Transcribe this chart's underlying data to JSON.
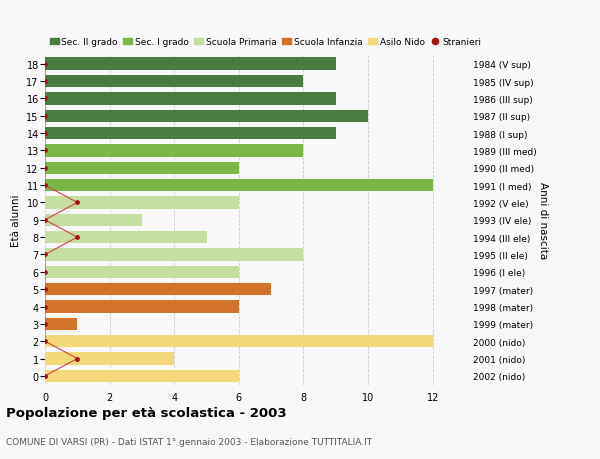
{
  "ages": [
    18,
    17,
    16,
    15,
    14,
    13,
    12,
    11,
    10,
    9,
    8,
    7,
    6,
    5,
    4,
    3,
    2,
    1,
    0
  ],
  "right_labels": [
    "1984 (V sup)",
    "1985 (IV sup)",
    "1986 (III sup)",
    "1987 (II sup)",
    "1988 (I sup)",
    "1989 (III med)",
    "1990 (II med)",
    "1991 (I med)",
    "1992 (V ele)",
    "1993 (IV ele)",
    "1994 (III ele)",
    "1995 (II ele)",
    "1996 (I ele)",
    "1997 (mater)",
    "1998 (mater)",
    "1999 (mater)",
    "2000 (nido)",
    "2001 (nido)",
    "2002 (nido)"
  ],
  "bar_values": [
    9,
    8,
    9,
    10,
    9,
    8,
    6,
    12,
    6,
    3,
    5,
    8,
    6,
    7,
    6,
    1,
    12,
    4,
    6
  ],
  "bar_colors": [
    "#4a7c3f",
    "#4a7c3f",
    "#4a7c3f",
    "#4a7c3f",
    "#4a7c3f",
    "#7ab648",
    "#7ab648",
    "#7ab648",
    "#c5dfa0",
    "#c5dfa0",
    "#c5dfa0",
    "#c5dfa0",
    "#c5dfa0",
    "#d4722a",
    "#d4722a",
    "#d4722a",
    "#f5d87a",
    "#f5d87a",
    "#f5d87a"
  ],
  "stranieri_values": [
    0,
    0,
    0,
    0,
    0,
    0,
    0,
    0,
    1,
    0,
    1,
    0,
    0,
    0,
    0,
    0,
    0,
    1,
    0
  ],
  "legend_labels": [
    "Sec. II grado",
    "Sec. I grado",
    "Scuola Primaria",
    "Scuola Infanzia",
    "Asilo Nido",
    "Stranieri"
  ],
  "legend_colors": [
    "#4a7c3f",
    "#7ab648",
    "#c5dfa0",
    "#d4722a",
    "#f5d87a",
    "#aa1111"
  ],
  "title": "Popolazione per età scolastica - 2003",
  "subtitle": "COMUNE DI VARSI (PR) - Dati ISTAT 1° gennaio 2003 - Elaborazione TUTTITALIA.IT",
  "ylabel": "Età alunni",
  "right_ylabel": "Anni di nascita",
  "xlabel_ticks": [
    0,
    2,
    4,
    6,
    8,
    10,
    12
  ],
  "xlim": [
    0,
    13
  ],
  "ylim": [
    -0.55,
    18.55
  ],
  "background_color": "#f8f8f8",
  "grid_color": "#cccccc",
  "stranieri_color": "#aa1111",
  "stranieri_line_color": "#cc4444",
  "bar_height": 0.72
}
